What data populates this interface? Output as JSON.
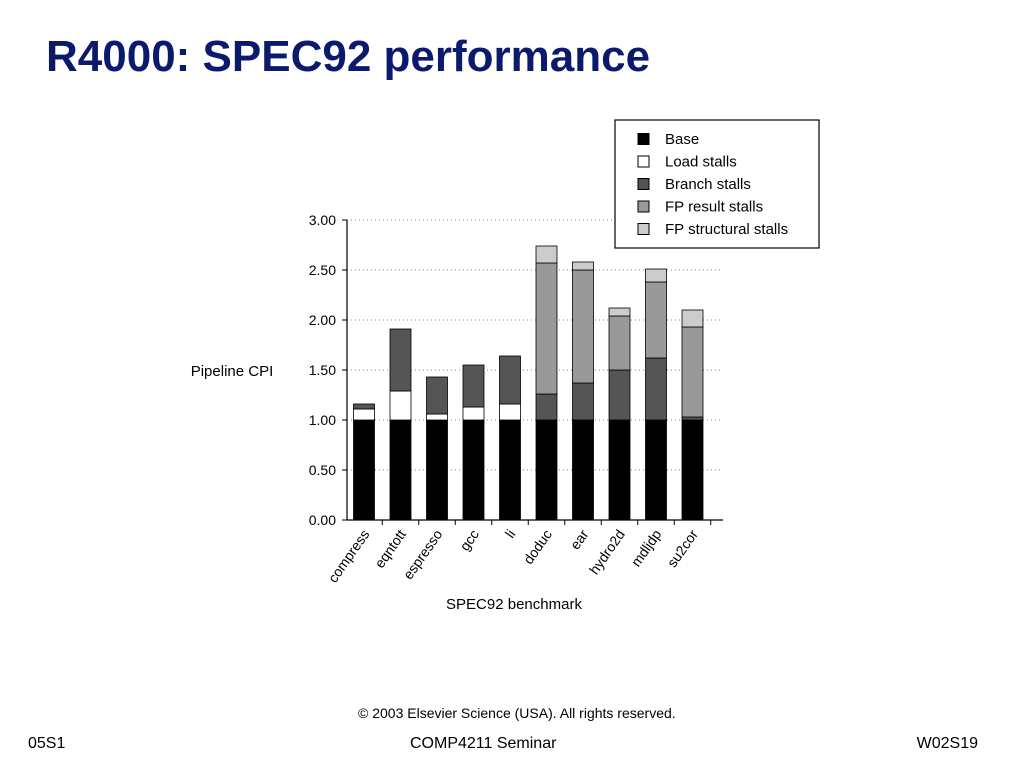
{
  "slide": {
    "title": "R4000: SPEC92 performance",
    "copyright": "© 2003 Elsevier Science (USA). All rights reserved.",
    "footer_left": "05S1",
    "footer_center": "COMP4211 Seminar",
    "footer_right": "W02S19"
  },
  "colors": {
    "Base": "#000000",
    "Load stalls": "#ffffff",
    "Branch stalls": "#555555",
    "FP result stalls": "#999999",
    "FP structural stalls": "#cccccc"
  },
  "chart_data": {
    "type": "bar",
    "stacked": true,
    "xlabel": "SPEC92 benchmark",
    "ylabel": "Pipeline CPI",
    "ylim": [
      0,
      3.0
    ],
    "yticks": [
      "0.00",
      "0.50",
      "1.00",
      "1.50",
      "2.00",
      "2.50",
      "3.00"
    ],
    "grid": "horizontal dotted",
    "legend_position": "top-right",
    "categories": [
      "compress",
      "eqntott",
      "espresso",
      "gcc",
      "li",
      "doduc",
      "ear",
      "hydro2d",
      "mdljdp",
      "su2cor"
    ],
    "series": [
      {
        "name": "Base",
        "values": [
          1.0,
          1.0,
          1.0,
          1.0,
          1.0,
          1.0,
          1.0,
          1.0,
          1.0,
          1.0
        ]
      },
      {
        "name": "Load stalls",
        "values": [
          0.11,
          0.29,
          0.06,
          0.13,
          0.16,
          0.0,
          0.0,
          0.0,
          0.0,
          0.0
        ]
      },
      {
        "name": "Branch stalls",
        "values": [
          0.05,
          0.62,
          0.37,
          0.42,
          0.48,
          0.26,
          0.37,
          0.5,
          0.62,
          0.03
        ]
      },
      {
        "name": "FP result stalls",
        "values": [
          0.0,
          0.0,
          0.0,
          0.0,
          0.0,
          1.31,
          1.13,
          0.54,
          0.76,
          0.9
        ]
      },
      {
        "name": "FP structural stalls",
        "values": [
          0.0,
          0.0,
          0.0,
          0.0,
          0.0,
          0.17,
          0.08,
          0.08,
          0.13,
          0.17
        ]
      }
    ]
  }
}
